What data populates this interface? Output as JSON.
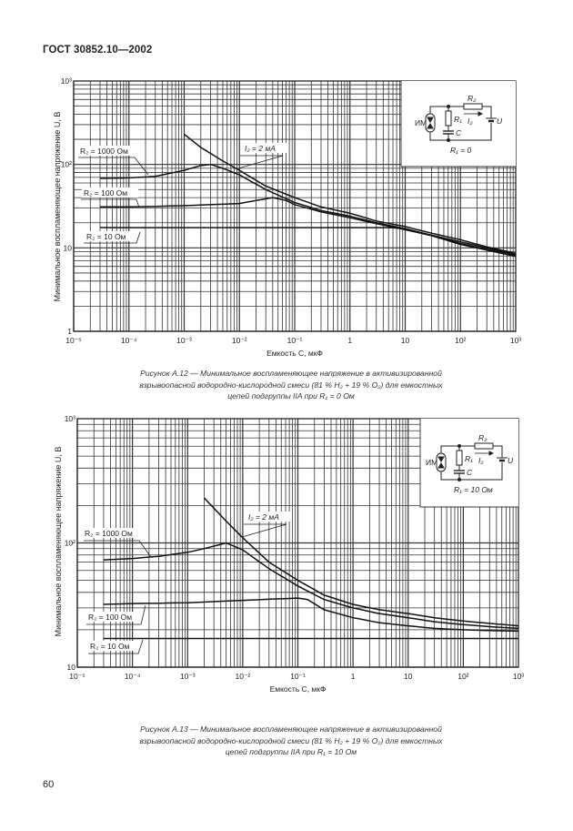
{
  "header": {
    "title": "ГОСТ 30852.10—2002"
  },
  "page_number": "60",
  "chart_data": [
    {
      "type": "line",
      "xscale": "log",
      "yscale": "log",
      "xlim": [
        1e-05,
        1000
      ],
      "ylim": [
        1,
        1000
      ],
      "grid": true,
      "xlabel": "Емкость C, мкФ",
      "ylabel": "Минимальное воспламеняющее напряжение U, В",
      "xticks": [
        "10⁻⁵",
        "10⁻⁴",
        "10⁻³",
        "10⁻²",
        "10⁻¹",
        "1",
        "10",
        "10²",
        "10³"
      ],
      "yticks": [
        "1",
        "10",
        "10²",
        "10³"
      ],
      "series": [
        {
          "name": "I₂ = 2 мА",
          "x": [
            0.001,
            0.002,
            0.005,
            0.01,
            0.03,
            0.1,
            0.3,
            1,
            3,
            10,
            30,
            100,
            300,
            1000
          ],
          "y": [
            230,
            160,
            110,
            85,
            55,
            40,
            31,
            26,
            21,
            18,
            15,
            12.5,
            10.3,
            8.6
          ]
        },
        {
          "name": "R₂ = 1000 Ом",
          "x": [
            3e-05,
            0.0001,
            0.0003,
            0.001,
            0.002,
            0.003,
            0.005,
            0.01,
            0.03,
            0.1,
            0.3,
            1,
            3,
            10,
            30,
            100,
            300,
            1000
          ],
          "y": [
            68,
            69,
            72,
            85,
            97,
            100,
            90,
            75,
            50,
            35,
            28,
            24,
            20,
            17,
            14.2,
            11.8,
            10,
            8.3
          ]
        },
        {
          "name": "R₂ = 100 Ом",
          "x": [
            3e-05,
            0.0001,
            0.001,
            0.01,
            0.02,
            0.04,
            0.07,
            0.1,
            0.3,
            1,
            3,
            10,
            30,
            100,
            300,
            1000
          ],
          "y": [
            31,
            31,
            32,
            34,
            37,
            40,
            37,
            33,
            27,
            23,
            19.5,
            16.5,
            14,
            11.3,
            9.6,
            8.1
          ]
        },
        {
          "name": "R₂ = 10 Ом",
          "x": [
            3e-05,
            0.001,
            0.1,
            1,
            5,
            10,
            30,
            100,
            300,
            1000
          ],
          "y": [
            17.5,
            17.5,
            17.5,
            17.5,
            17.5,
            17,
            14,
            11,
            9.4,
            7.9
          ]
        }
      ],
      "inset": {
        "labels": {
          "im": "ИМ",
          "r2": "R₂",
          "r1": "R₁",
          "i2": "I₂",
          "c": "C",
          "u": "U"
        },
        "condition": "R₁ = 0"
      },
      "caption": [
        "Рисунок А.12 — Минимальное воспламеняющее напряжение в активизированной",
        "взрывоопасной водородно-кислородной смеси (81 % H₂ + 19 % O₂) для емкостных",
        "цепей подгруппы IIA при R₁ = 0 Ом"
      ]
    },
    {
      "type": "line",
      "xscale": "log",
      "yscale": "log",
      "xlim": [
        1e-05,
        1000
      ],
      "ylim": [
        10,
        1000
      ],
      "grid": true,
      "xlabel": "Емкость C, мкФ",
      "ylabel": "Минимальное воспламеняющее напряжение U, В",
      "xticks": [
        "10⁻⁵",
        "10⁻⁴",
        "10⁻³",
        "10⁻²",
        "10⁻¹",
        "1",
        "10",
        "10²",
        "10³"
      ],
      "yticks": [
        "10",
        "10²",
        "10³"
      ],
      "series": [
        {
          "name": "I₂ = 2 мА",
          "x": [
            0.002,
            0.005,
            0.01,
            0.03,
            0.1,
            0.3,
            1,
            3,
            10,
            30,
            100,
            300,
            1000
          ],
          "y": [
            230,
            150,
            110,
            70,
            50,
            38,
            32,
            29,
            27,
            25,
            23.5,
            22.5,
            21.5
          ]
        },
        {
          "name": "R₂ = 1000 Ом",
          "x": [
            3e-05,
            0.0001,
            0.0003,
            0.001,
            0.002,
            0.005,
            0.01,
            0.03,
            0.1,
            0.3,
            1,
            3,
            10,
            30,
            100,
            300,
            1000
          ],
          "y": [
            73,
            75,
            78,
            84,
            90,
            100,
            88,
            62,
            45,
            35,
            30,
            27,
            25,
            23.2,
            22,
            21.2,
            20.5
          ]
        },
        {
          "name": "R₂ = 100 Ом",
          "x": [
            3e-05,
            0.0001,
            0.001,
            0.01,
            0.1,
            0.15,
            0.3,
            1,
            3,
            10,
            30,
            100,
            300,
            1000
          ],
          "y": [
            32,
            32.5,
            33,
            34.5,
            36,
            35,
            29,
            25,
            22.8,
            21.5,
            20.5,
            20,
            19.7,
            19.5
          ]
        },
        {
          "name": "R₂ = 10 Ом",
          "x": [
            3e-05,
            1000
          ],
          "y": [
            17,
            17
          ]
        }
      ],
      "inset": {
        "labels": {
          "im": "ИМ",
          "r2": "R₂",
          "r1": "R₁",
          "i2": "I₂",
          "c": "C",
          "u": "U"
        },
        "condition": "R₁ = 10 Ом"
      },
      "caption": [
        "Рисунок А.13 — Минимальное воспламеняющее напряжение в активизированной",
        "взрывоопасной водородно-кислородной смеси (81 % H₂ + 19 % O₂) для емкостных",
        "цепей подгруппы IIA при R₁ = 10 Ом"
      ]
    }
  ]
}
